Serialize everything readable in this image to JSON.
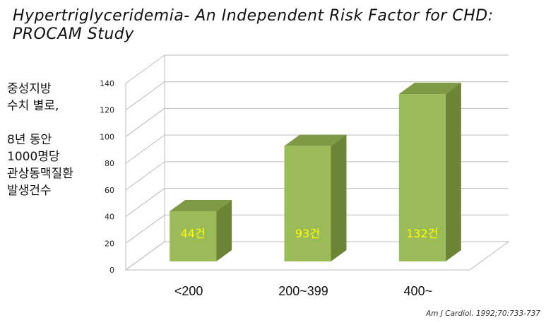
{
  "title": {
    "line1": "Hypertriglyceridemia- An Independent Risk Factor for CHD:",
    "line2": "PROCAM Study"
  },
  "side_note": {
    "lines_a": [
      "중성지방",
      "수치 별로,"
    ],
    "lines_b": [
      "8년 동안",
      "1000명당",
      "관상동맥질환",
      "발생건수"
    ]
  },
  "citation": "Am J Cardiol. 1992;70:733-737",
  "colors": {
    "bar_front": "#9bbb59",
    "bar_side": "#6b8436",
    "bar_top": "#7e9a45",
    "data_label": "#ffff00",
    "grid": "#bbbbbb"
  },
  "chart_data": {
    "type": "bar",
    "categories": [
      "<200",
      "200~399",
      "400~"
    ],
    "values": [
      44,
      93,
      132
    ],
    "data_labels": [
      "44건",
      "93건",
      "132건"
    ],
    "y_ticks": [
      "0",
      "20",
      "40",
      "60",
      "80",
      "100",
      "120",
      "140"
    ],
    "ylim": [
      0,
      140
    ],
    "grid": true,
    "style": "3d-column"
  }
}
